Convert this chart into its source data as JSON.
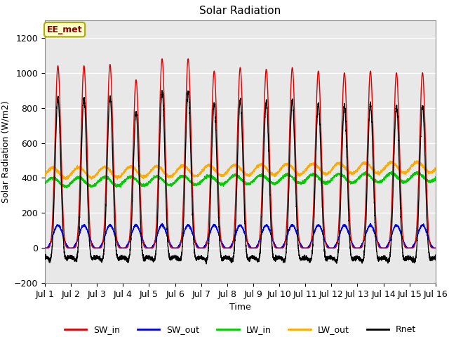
{
  "title": "Solar Radiation",
  "xlabel": "Time",
  "ylabel": "Solar Radiation (W/m2)",
  "annotation": "EE_met",
  "ylim": [
    -200,
    1300
  ],
  "yticks": [
    -200,
    0,
    200,
    400,
    600,
    800,
    1000,
    1200
  ],
  "n_days": 15,
  "colors": {
    "SW_in": "#dd0000",
    "SW_out": "#0000ee",
    "LW_in": "#00cc00",
    "LW_out": "#ffaa00",
    "Rnet": "#000000"
  },
  "SW_in_peaks": [
    1040,
    1040,
    1048,
    960,
    1080,
    1080,
    1010,
    1030,
    1020,
    1030,
    1010,
    1000,
    1010,
    1000,
    1000
  ],
  "background_color": "#e8e8e8",
  "grid_color": "#ffffff",
  "figsize": [
    6.4,
    4.8
  ],
  "dpi": 100
}
